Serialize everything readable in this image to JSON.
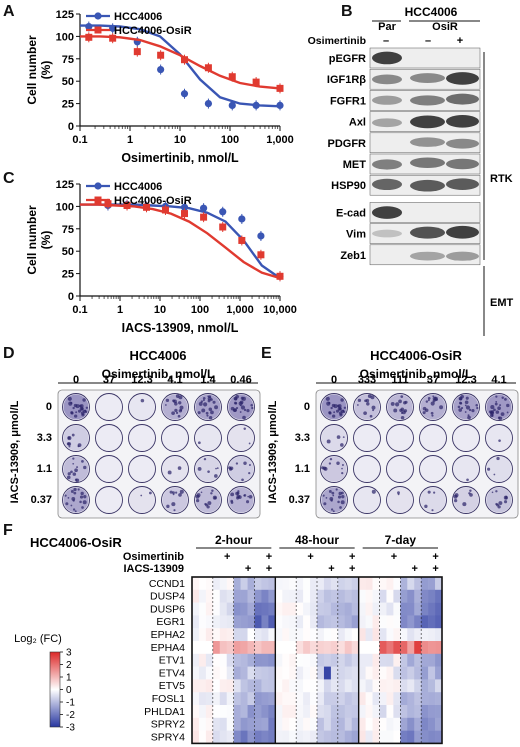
{
  "panels": {
    "A": "A",
    "B": "B",
    "C": "C",
    "D": "D",
    "E": "E",
    "F": "F"
  },
  "panel_a": {
    "chart_data": {
      "type": "line",
      "xlabel": "Osimertinib, nmol/L",
      "ylabel": "Cell number (%)",
      "x_log": true,
      "xlim": [
        0.1,
        1000
      ],
      "ylim": [
        0,
        125
      ],
      "xticks": [
        "0.1",
        "1",
        "10",
        "100",
        "1,000"
      ],
      "yticks": [
        "0",
        "25",
        "50",
        "75",
        "100",
        "125"
      ],
      "legend_position": "top-left",
      "series": [
        {
          "name": "HCC4006",
          "color": "#3a56b4",
          "marker": "circle",
          "x": [
            0.15,
            0.45,
            1.4,
            4.1,
            12.3,
            37,
            111,
            333,
            1000
          ],
          "y": [
            111,
            109,
            94,
            63,
            36,
            25,
            23,
            23,
            23
          ],
          "fit": [
            112,
            112,
            111,
            108,
            100,
            80,
            52,
            32,
            25,
            23,
            22
          ]
        },
        {
          "name": "HCC4006-OsiR",
          "color": "#e03a30",
          "marker": "square",
          "x": [
            0.15,
            0.45,
            1.4,
            4.1,
            12.3,
            37,
            111,
            333,
            1000
          ],
          "y": [
            99,
            98,
            83,
            79,
            74,
            65,
            55,
            49,
            42
          ],
          "fit": [
            100,
            100,
            99,
            96,
            89,
            79,
            67,
            56,
            48,
            44,
            42
          ]
        }
      ]
    }
  },
  "panel_c": {
    "chart_data": {
      "type": "line",
      "xlabel": "IACS-13909, nmol/L",
      "ylabel": "Cell number (%)",
      "x_log": true,
      "xlim": [
        0.1,
        10000
      ],
      "ylim": [
        0,
        125
      ],
      "xticks": [
        "0.1",
        "1",
        "10",
        "100",
        "1,000",
        "10,000"
      ],
      "yticks": [
        "0",
        "25",
        "50",
        "75",
        "100",
        "125"
      ],
      "legend_position": "top-left",
      "series": [
        {
          "name": "HCC4006",
          "color": "#3a56b4",
          "marker": "circle",
          "x": [
            0.5,
            1.5,
            4.6,
            13.7,
            41,
            123,
            370,
            1111,
            3333,
            10000
          ],
          "y": [
            101,
            102,
            100,
            100,
            99,
            98,
            94,
            86,
            67,
            22
          ],
          "fit": [
            102,
            102,
            102,
            102,
            101,
            100,
            98,
            93,
            83,
            62,
            34,
            20
          ]
        },
        {
          "name": "HCC4006-OsiR",
          "color": "#e03a30",
          "marker": "square",
          "x": [
            0.5,
            1.5,
            4.6,
            13.7,
            41,
            123,
            370,
            1111,
            3333,
            10000
          ],
          "y": [
            103,
            101,
            99,
            96,
            92,
            88,
            77,
            62,
            46,
            22
          ],
          "fit": [
            102,
            102,
            101,
            100,
            97,
            92,
            83,
            70,
            54,
            38,
            26,
            20
          ]
        }
      ]
    }
  },
  "panel_b": {
    "title": "HCC4006",
    "lanes": [
      "Par",
      "OsiR"
    ],
    "treatment_label": "Osimertinib",
    "treatment_signs": [
      "–",
      "–",
      "+"
    ],
    "bands": [
      "pEGFR",
      "IGF1Rβ",
      "FGFR1",
      "Axl",
      "PDGFR",
      "MET",
      "HSP90",
      "E-cad",
      "Vim",
      "Zeb1"
    ],
    "group_rtk": "RTK",
    "group_emt": "EMT"
  },
  "panel_d": {
    "title": "HCC4006",
    "xlabel": "Osimertinib, nmol/L",
    "ylabel": "IACS-13909, μmol/L",
    "cols": [
      "0",
      "37",
      "12.3",
      "4.1",
      "1.4",
      "0.46"
    ],
    "rows": [
      "0",
      "3.3",
      "1.1",
      "0.37"
    ]
  },
  "panel_e": {
    "title": "HCC4006-OsiR",
    "xlabel": "Osimertinib, nmol/L",
    "ylabel": "IACS-13909, μmol/L",
    "cols": [
      "0",
      "333",
      "111",
      "37",
      "12.3",
      "4.1"
    ],
    "rows": [
      "0",
      "3.3",
      "1.1",
      "0.37"
    ]
  },
  "panel_f": {
    "title": "HCC4006-OsiR",
    "timepoints": [
      "2-hour",
      "48-hour",
      "7-day"
    ],
    "row1_label": "Osimertinib",
    "row2_label": "IACS-13909",
    "osi_signs": [
      "",
      "+",
      "",
      "+"
    ],
    "iacs_signs": [
      "",
      "",
      "+",
      "+"
    ],
    "legend_title": "Log₂ (FC)",
    "legend_ticks": [
      "3",
      "2",
      "1",
      "0",
      "-1",
      "-2",
      "-3"
    ],
    "genes": [
      "CCND1",
      "DUSP4",
      "DUSP6",
      "EGR1",
      "EPHA2",
      "EPHA4",
      "ETV1",
      "ETV4",
      "ETV5",
      "FOSL1",
      "PHLDA1",
      "SPRY2",
      "SPRY4"
    ]
  }
}
